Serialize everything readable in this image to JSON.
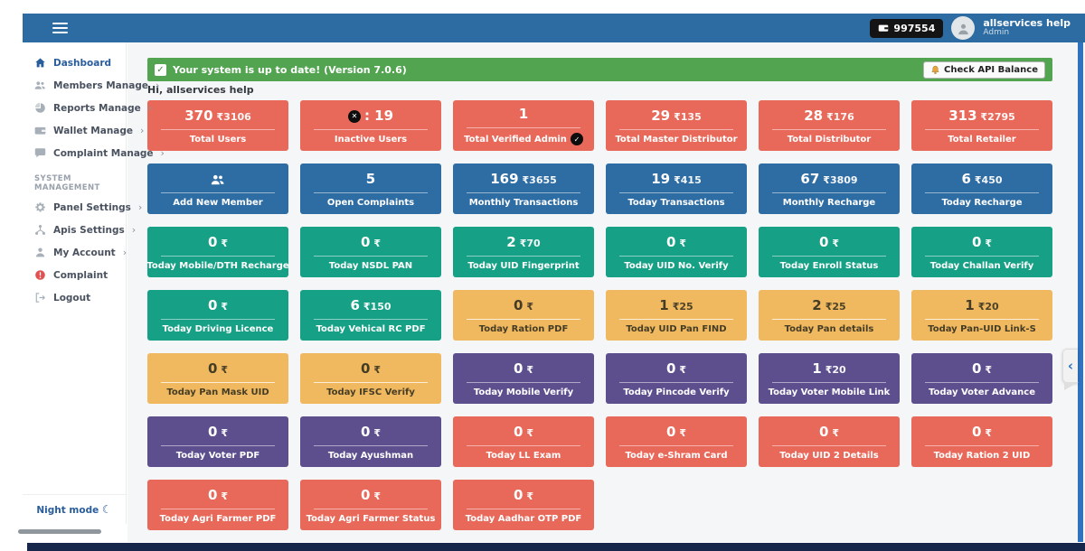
{
  "topbar": {
    "balance": "997554",
    "user_name": "allservices help",
    "user_role": "Admin"
  },
  "sidebar": {
    "items": [
      {
        "label": "Dashboard",
        "icon": "home",
        "active": true,
        "chevron": false
      },
      {
        "label": "Members Manage",
        "icon": "users",
        "active": false,
        "chevron": true
      },
      {
        "label": "Reports Manage",
        "icon": "pie",
        "active": false,
        "chevron": true
      },
      {
        "label": "Wallet Manage",
        "icon": "wallet",
        "active": false,
        "chevron": true
      },
      {
        "label": "Complaint Manage",
        "icon": "chat",
        "active": false,
        "chevron": true
      }
    ],
    "section_title": "SYSTEM MANAGEMENT",
    "system_items": [
      {
        "label": "Panel Settings",
        "icon": "gear",
        "active": false,
        "chevron": true
      },
      {
        "label": "Apis Settings",
        "icon": "sitemap",
        "active": false,
        "chevron": true
      },
      {
        "label": "My Account",
        "icon": "person",
        "active": false,
        "chevron": true
      },
      {
        "label": "Complaint",
        "icon": "warn-circle",
        "active": false,
        "chevron": false,
        "icon_color": "#e05252"
      },
      {
        "label": "Logout",
        "icon": "logout",
        "active": false,
        "chevron": false
      }
    ],
    "night_mode_label": "Night mode",
    "moon_glyph": "☾"
  },
  "alert": {
    "message": "Your system is up to date! (Version 7.0.6)",
    "check_glyph": "✓",
    "button_label": "Check API Balance"
  },
  "greeting": "Hi, allservices help",
  "colors": {
    "red": "#e8695a",
    "blue": "#2e6da4",
    "green": "#16a085",
    "yellow": "#f0b95f",
    "purple": "#5d4e8e"
  },
  "collapse_glyph": "‹",
  "cards": [
    {
      "value": "370",
      "amount": "₹3106",
      "label": "Total Users",
      "color": "red"
    },
    {
      "value_icon": "cross-circle",
      "value": ": 19",
      "amount": "",
      "label": "Inactive Users",
      "color": "red"
    },
    {
      "value": "1",
      "amount": "",
      "label": "Total Verified Admin",
      "label_icon": "check-circle",
      "color": "red"
    },
    {
      "value": "29",
      "amount": "₹135",
      "label": "Total Master Distributor",
      "color": "red"
    },
    {
      "value": "28",
      "amount": "₹176",
      "label": "Total Distributor",
      "color": "red"
    },
    {
      "value": "313",
      "amount": "₹2795",
      "label": "Total Retailer",
      "color": "red"
    },
    {
      "value_icon": "users",
      "value": "",
      "amount": "",
      "label": "Add New Member",
      "color": "blue"
    },
    {
      "value": "5",
      "amount": "",
      "label": "Open Complaints",
      "color": "blue"
    },
    {
      "value": "169",
      "amount": "₹3655",
      "label": "Monthly Transactions",
      "color": "blue"
    },
    {
      "value": "19",
      "amount": "₹415",
      "label": "Today Transactions",
      "color": "blue"
    },
    {
      "value": "67",
      "amount": "₹3809",
      "label": "Monthly Recharge",
      "color": "blue"
    },
    {
      "value": "6",
      "amount": "₹450",
      "label": "Today Recharge",
      "color": "blue"
    },
    {
      "value": "0",
      "amount": "₹",
      "label": "Today Mobile/DTH Recharge",
      "color": "green"
    },
    {
      "value": "0",
      "amount": "₹",
      "label": "Today NSDL PAN",
      "color": "green"
    },
    {
      "value": "2",
      "amount": "₹70",
      "label": "Today UID Fingerprint",
      "color": "green"
    },
    {
      "value": "0",
      "amount": "₹",
      "label": "Today UID No. Verify",
      "color": "green"
    },
    {
      "value": "0",
      "amount": "₹",
      "label": "Today Enroll Status",
      "color": "green"
    },
    {
      "value": "0",
      "amount": "₹",
      "label": "Today Challan Verify",
      "color": "green"
    },
    {
      "value": "0",
      "amount": "₹",
      "label": "Today Driving Licence",
      "color": "green"
    },
    {
      "value": "6",
      "amount": "₹150",
      "label": "Today Vehical RC PDF",
      "color": "green"
    },
    {
      "value": "0",
      "amount": "₹",
      "label": "Today Ration PDF",
      "color": "yellow"
    },
    {
      "value": "1",
      "amount": "₹25",
      "label": "Today UID Pan FIND",
      "color": "yellow"
    },
    {
      "value": "2",
      "amount": "₹25",
      "label": "Today Pan details",
      "color": "yellow"
    },
    {
      "value": "1",
      "amount": "₹20",
      "label": "Today Pan-UID Link-S",
      "color": "yellow"
    },
    {
      "value": "0",
      "amount": "₹",
      "label": "Today Pan Mask UID",
      "color": "yellow"
    },
    {
      "value": "0",
      "amount": "₹",
      "label": "Today IFSC Verify",
      "color": "yellow"
    },
    {
      "value": "0",
      "amount": "₹",
      "label": "Today Mobile Verify",
      "color": "purple"
    },
    {
      "value": "0",
      "amount": "₹",
      "label": "Today Pincode Verify",
      "color": "purple"
    },
    {
      "value": "1",
      "amount": "₹20",
      "label": "Today Voter Mobile Link",
      "color": "purple"
    },
    {
      "value": "0",
      "amount": "₹",
      "label": "Today Voter Advance",
      "color": "purple"
    },
    {
      "value": "0",
      "amount": "₹",
      "label": "Today Voter PDF",
      "color": "purple"
    },
    {
      "value": "0",
      "amount": "₹",
      "label": "Today Ayushman",
      "color": "purple"
    },
    {
      "value": "0",
      "amount": "₹",
      "label": "Today LL Exam",
      "color": "red"
    },
    {
      "value": "0",
      "amount": "₹",
      "label": "Today e-Shram Card",
      "color": "red"
    },
    {
      "value": "0",
      "amount": "₹",
      "label": "Today UID 2 Details",
      "color": "red"
    },
    {
      "value": "0",
      "amount": "₹",
      "label": "Today Ration 2 UID",
      "color": "red"
    },
    {
      "value": "0",
      "amount": "₹",
      "label": "Today Agri Farmer PDF",
      "color": "red"
    },
    {
      "value": "0",
      "amount": "₹",
      "label": "Today Agri Farmer Status",
      "color": "red"
    },
    {
      "value": "0",
      "amount": "₹",
      "label": "Today Aadhar OTP PDF",
      "color": "red"
    }
  ]
}
